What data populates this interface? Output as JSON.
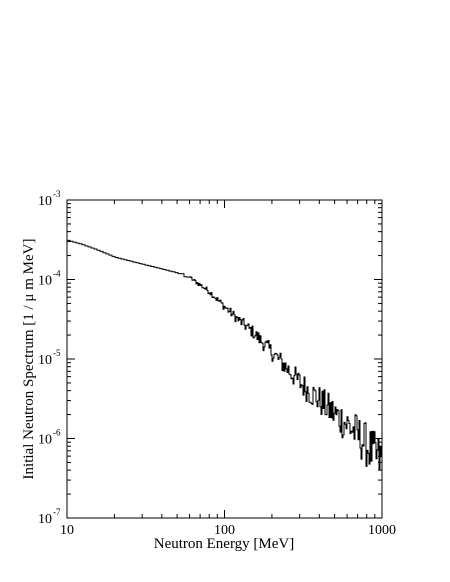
{
  "chart_data": {
    "type": "line",
    "title": "",
    "xlabel": "Neutron Energy [MeV]",
    "ylabel": "Initial Neutron Spectrum [1 / μ m MeV]",
    "x_scale": "log",
    "y_scale": "log",
    "xlim": [
      10,
      1000
    ],
    "ylim": [
      1e-07,
      0.001
    ],
    "x_ticks": [
      {
        "value": 10,
        "label": "10"
      },
      {
        "value": 100,
        "label": "100"
      },
      {
        "value": 1000,
        "label": "1000"
      }
    ],
    "y_ticks": [
      {
        "value": 1e-07,
        "base": "10",
        "exp": "-7"
      },
      {
        "value": 1e-06,
        "base": "10",
        "exp": "-6"
      },
      {
        "value": 1e-05,
        "base": "10",
        "exp": "-5"
      },
      {
        "value": 0.0001,
        "base": "10",
        "exp": "-4"
      },
      {
        "value": 0.001,
        "base": "10",
        "exp": "-3"
      }
    ],
    "grid": false,
    "legend": "none",
    "line_color": "#000000",
    "series": [
      {
        "x": [
          10,
          12,
          15,
          20,
          30,
          40,
          50,
          60,
          70,
          80,
          100,
          120,
          150,
          200,
          250,
          300,
          400,
          500,
          600,
          700,
          800,
          900,
          1000
        ],
        "y": [
          0.00031,
          0.00028,
          0.00024,
          0.00019,
          0.000155,
          0.000135,
          0.00012,
          0.000105,
          8.5e-05,
          7e-05,
          4.5e-05,
          3.2e-05,
          2.2e-05,
          1.2e-05,
          7.5e-06,
          5e-06,
          3e-06,
          2e-06,
          1.5e-06,
          1.1e-06,
          8e-07,
          6e-07,
          5e-07
        ]
      }
    ]
  }
}
